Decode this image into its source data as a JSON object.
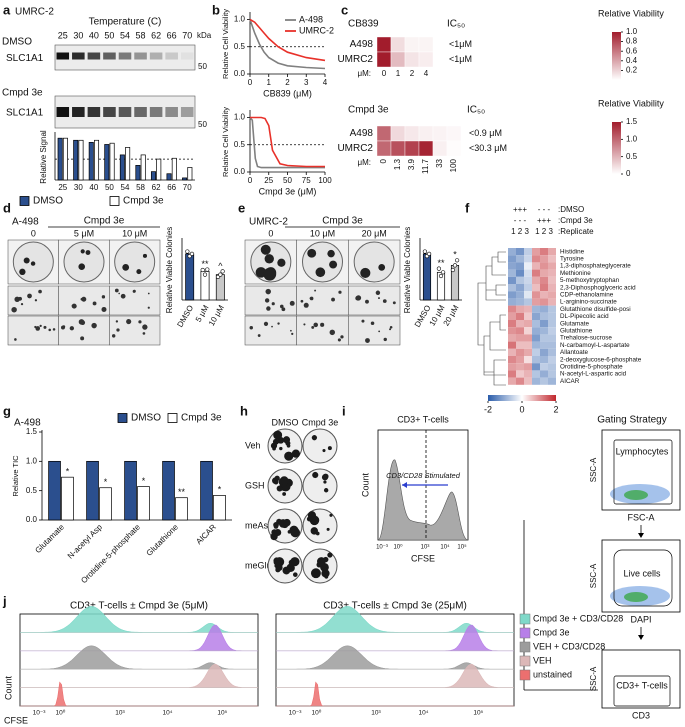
{
  "figure": {
    "a": {
      "label": "a",
      "cell_line": "UMRC-2",
      "axis_title": "Temperature (C)",
      "temperatures": [
        "25",
        "30",
        "40",
        "50",
        "54",
        "58",
        "62",
        "66",
        "70"
      ],
      "unit": "kDa",
      "rows": [
        {
          "treatment": "DMSO",
          "protein": "SLC1A1",
          "marker": "50"
        },
        {
          "treatment": "Cmpd 3e",
          "protein": "SLC1A1",
          "marker": "50"
        }
      ]
    },
    "b": {
      "label": "b"
    },
    "c": {
      "label": "c"
    },
    "d": {
      "label": "d",
      "cell_line": "A-498",
      "treatment": "Cmpd 3e",
      "doses": [
        "0",
        "5 μM",
        "10 μM"
      ]
    },
    "e": {
      "label": "e",
      "cell_line": "UMRC-2",
      "treatment": "Cmpd 3e",
      "doses": [
        "0",
        "10 μM",
        "20 μM"
      ]
    },
    "f": {
      "label": "f",
      "header": [
        [
          "+++",
          "- - -",
          ":DMSO"
        ],
        [
          "- - -",
          "+++",
          ":Cmpd 3e"
        ],
        [
          "1 2 3",
          "1 2 3",
          ":Replicate"
        ]
      ]
    },
    "g": {
      "label": "g"
    },
    "h": {
      "label": "h",
      "columns": [
        "DMSO",
        "Cmpd 3e"
      ],
      "rows": [
        "Veh",
        "GSH",
        "meAsp",
        "meGlu"
      ]
    },
    "i": {
      "label": "i",
      "histogram": {
        "title": "CD3+ T-cells",
        "ylabel": "Count",
        "xlabel": "CFSE",
        "annotation": "CD3/CD28 Stimulated",
        "xticks": [
          "10⁻³",
          "10⁰",
          "10³",
          "10⁴",
          "10⁵"
        ]
      },
      "gating": {
        "title": "Gating Strategy",
        "plots": [
          {
            "y": "SSC-A",
            "x": "FSC-A",
            "gate": "Lymphocytes"
          },
          {
            "y": "SSC-A",
            "x": "DAPI",
            "gate": "Live cells"
          },
          {
            "y": "SSC-A",
            "x": "CD3",
            "gate": "CD3+ T-cells"
          }
        ]
      }
    },
    "j": {
      "label": "j",
      "panels": [
        "CD3+ T-cells ± Cmpd 3e (5μM)",
        "CD3+ T-cells ± Cmpd 3e (25μM)"
      ],
      "ylabel": "Count",
      "xlabel": "CFSE",
      "xticks": [
        "10⁻³",
        "10⁰",
        "10³",
        "10⁴",
        "10⁵"
      ],
      "legend": [
        {
          "name": "Cmpd 3e + CD3/CD28",
          "color": "#7fd9c9"
        },
        {
          "name": "Cmpd 3e",
          "color": "#b77fe8"
        },
        {
          "name": "VEH + CD3/CD28",
          "color": "#9c9c9c"
        },
        {
          "name": "VEH",
          "color": "#dcb8b8"
        },
        {
          "name": "unstained",
          "color": "#ec6f6f"
        }
      ]
    }
  },
  "chart_data": [
    {
      "type": "bar",
      "ylabel": "Relative Signal",
      "categories": [
        "25",
        "30",
        "40",
        "50",
        "54",
        "58",
        "62",
        "66",
        "70"
      ],
      "series": [
        {
          "name": "DMSO",
          "color": "#2b4f8e",
          "values": [
            1.0,
            0.95,
            0.9,
            0.85,
            0.6,
            0.35,
            0.2,
            0.15,
            0.05
          ]
        },
        {
          "name": "Cmpd 3e",
          "color": "#ffffff",
          "values": [
            1.0,
            0.95,
            0.95,
            0.88,
            0.78,
            0.6,
            0.5,
            0.52,
            0.3
          ]
        }
      ],
      "ylim": [
        0,
        1.1
      ],
      "hline": 0.5
    },
    {
      "type": "line",
      "xlabel": "CB839 (μM)",
      "ylabel": "Relative Cell Viability",
      "x": [
        0,
        0.25,
        0.5,
        0.75,
        1,
        1.5,
        2,
        3,
        4
      ],
      "series": [
        {
          "name": "A-498",
          "color": "#808080",
          "values": [
            1.0,
            0.75,
            0.55,
            0.4,
            0.3,
            0.2,
            0.15,
            0.12,
            0.1
          ]
        },
        {
          "name": "UMRC-2",
          "color": "#e8312a",
          "values": [
            1.0,
            0.95,
            0.85,
            0.75,
            0.65,
            0.5,
            0.4,
            0.3,
            0.25
          ]
        }
      ],
      "xlim": [
        0,
        4
      ],
      "xticks": [
        0,
        1,
        2,
        3,
        4
      ],
      "ylim": [
        0,
        1.1
      ],
      "yticks": [
        {
          "value": 0,
          "label": "0.0"
        },
        {
          "value": 0.5,
          "label": "0.5"
        },
        {
          "value": 1,
          "label": "1.0"
        }
      ],
      "hline": 0.5,
      "legend": "upper right"
    },
    {
      "type": "line",
      "xlabel": "Cmpd 3e (μM)",
      "ylabel": "Relative Cell Viability",
      "x": [
        0,
        3,
        5,
        7,
        10,
        15,
        20,
        25,
        30,
        40,
        50,
        75,
        100
      ],
      "series": [
        {
          "color": "#808080",
          "values": [
            1.0,
            0.95,
            0.6,
            0.25,
            0.1,
            0.08,
            0.08,
            0.08,
            0.08,
            0.08,
            0.08,
            0.08,
            0.08
          ]
        },
        {
          "color": "#e8312a",
          "values": [
            1.0,
            1.0,
            1.0,
            1.0,
            1.0,
            1.0,
            0.98,
            0.85,
            0.4,
            0.15,
            0.12,
            0.1,
            0.1
          ]
        }
      ],
      "xlim": [
        0,
        100
      ],
      "xticks": [
        0,
        25,
        50,
        75,
        100
      ],
      "ylim": [
        0,
        1.1
      ],
      "yticks": [
        {
          "value": 0,
          "label": "0.0"
        },
        {
          "value": 0.5,
          "label": "0.5"
        },
        {
          "value": 1,
          "label": "1.0"
        }
      ],
      "hline": 0.5
    },
    {
      "type": "heatmap",
      "title": "CB839",
      "rows": [
        "A498",
        "UMRC2"
      ],
      "column_prefix": "μM:",
      "columns": [
        "0",
        "1",
        "2",
        "4"
      ],
      "values": [
        [
          1.0,
          0.15,
          0.05,
          0.05
        ],
        [
          1.0,
          0.3,
          0.12,
          0.08
        ]
      ],
      "ic50_title": "IC₅₀",
      "ic50": [
        "<1μM",
        "<1μM"
      ],
      "colorbar_title": "Relative Viability",
      "clim": [
        0,
        1.0
      ],
      "colors": [
        "#ffffff",
        "#a21c2c"
      ],
      "cticks": [
        {
          "value": 1.0,
          "label": "1.0"
        },
        {
          "value": 0.8,
          "label": "0.8"
        },
        {
          "value": 0.6,
          "label": "0.6"
        },
        {
          "value": 0.4,
          "label": "0.4"
        },
        {
          "value": 0.2,
          "label": "0.2"
        }
      ]
    },
    {
      "type": "heatmap",
      "title": "Cmpd 3e",
      "rows": [
        "A498",
        "UMRC2"
      ],
      "column_prefix": "μM:",
      "columns": [
        "0",
        "1.3",
        "3.9",
        "11.7",
        "33",
        "100"
      ],
      "values": [
        [
          1.0,
          0.25,
          0.15,
          0.1,
          0.08,
          0.05
        ],
        [
          1.0,
          1.15,
          1.25,
          1.45,
          0.1,
          0.02
        ]
      ],
      "ic50_title": "IC₅₀",
      "ic50": [
        "<0.9 μM",
        "<30.3 μM"
      ],
      "colorbar_title": "Relative Viability",
      "clim": [
        0,
        1.5
      ],
      "colors": [
        "#ffffff",
        "#a21c2c"
      ],
      "cticks": [
        {
          "value": 1.5,
          "label": "1.5"
        },
        {
          "value": 1,
          "label": "1.0"
        },
        {
          "value": 0.5,
          "label": "0.5"
        },
        0
      ]
    },
    {
      "type": "bar",
      "ylabel": "Relative Viable Colonies",
      "categories": [
        "DMSO",
        "5 μM",
        "10 μM"
      ],
      "values": [
        1.0,
        0.62,
        0.55
      ],
      "colors": [
        "#2b4f8e",
        "#ffffff",
        "#c8c8c8"
      ],
      "points": [
        [
          1.05,
          0.95,
          1.0
        ],
        [
          0.65,
          0.55,
          0.66
        ],
        [
          0.5,
          0.55,
          0.62
        ]
      ],
      "significance": [
        {
          "index": 1,
          "label": "**"
        },
        {
          "index": 2,
          "label": "^"
        }
      ],
      "ylim": [
        0,
        1.3
      ]
    },
    {
      "type": "bar",
      "ylabel": "Relative Viable Colonies",
      "categories": [
        "DMSO",
        "10 μM",
        "20 μM"
      ],
      "values": [
        1.0,
        0.6,
        0.75
      ],
      "colors": [
        "#2b4f8e",
        "#ffffff",
        "#c8c8c8"
      ],
      "points": [
        [
          1.05,
          0.95,
          1.0
        ],
        [
          0.68,
          0.52,
          0.6
        ],
        [
          0.65,
          0.75,
          0.86
        ]
      ],
      "significance": [
        {
          "index": 1,
          "label": "**"
        },
        {
          "index": 2,
          "label": "*"
        }
      ],
      "ylim": [
        0,
        1.3
      ]
    },
    {
      "type": "heatmap",
      "rows": [
        "Histidine",
        "Tyrosine",
        "1,3-diphosphateglycerate",
        "Methionine",
        "5-methoxytryptophan",
        "2,3-Diphosphoglyceric acid",
        "CDP-ethanolamine",
        "L-arginino-succinate",
        "Glutathione disulfide-posi",
        "DL-Pipecolic acid",
        "Glutamate",
        "Glutathione",
        "Trehalose-sucrose",
        "N-carbamoyl-L-aspartate",
        "Allantoate",
        "2-deoxyglucose-6-phosphate",
        "Orotidine-5-phosphate",
        "N-acetyl-L-aspartic acid",
        "AICAR"
      ],
      "values": [
        [
          -1.0,
          -1.3,
          -0.6,
          0.9,
          1.2,
          0.8
        ],
        [
          -1.2,
          -0.9,
          -0.5,
          1.1,
          0.9,
          0.6
        ],
        [
          -1.1,
          -1.2,
          -0.2,
          0.7,
          1.0,
          0.8
        ],
        [
          -0.9,
          -1.4,
          -0.4,
          1.2,
          0.8,
          0.7
        ],
        [
          -1.3,
          -0.7,
          -0.5,
          0.8,
          1.1,
          0.6
        ],
        [
          -0.8,
          -1.1,
          -0.6,
          0.6,
          1.2,
          0.7
        ],
        [
          -1.2,
          -1.0,
          -0.3,
          1.0,
          0.7,
          0.8
        ],
        [
          -1.0,
          -0.9,
          -0.7,
          0.9,
          1.0,
          0.7
        ],
        [
          1.1,
          0.8,
          0.7,
          -0.9,
          -1.0,
          -0.7
        ],
        [
          0.9,
          1.2,
          0.5,
          -1.1,
          -0.8,
          -0.7
        ],
        [
          1.2,
          0.7,
          0.8,
          -0.8,
          -1.2,
          -0.7
        ],
        [
          1.0,
          1.1,
          0.4,
          -1.0,
          -0.9,
          -0.6
        ],
        [
          0.8,
          0.9,
          0.9,
          -1.2,
          -0.7,
          -0.7
        ],
        [
          1.3,
          0.6,
          0.6,
          -0.9,
          -0.8,
          -0.8
        ],
        [
          0.7,
          1.0,
          0.8,
          -0.6,
          -1.1,
          -0.8
        ],
        [
          1.1,
          0.9,
          0.3,
          -0.8,
          -0.9,
          -0.6
        ],
        [
          0.9,
          0.8,
          0.9,
          -1.3,
          -0.6,
          -0.7
        ],
        [
          1.2,
          0.5,
          0.7,
          -0.7,
          -1.0,
          -0.7
        ],
        [
          0.8,
          1.1,
          0.6,
          -0.9,
          -0.7,
          -0.9
        ]
      ],
      "clim": [
        -2,
        2
      ],
      "colors": [
        "#2a5caa",
        "#ffffff",
        "#c1272d"
      ],
      "cticks": [
        -2,
        0,
        2
      ]
    },
    {
      "type": "bar",
      "title": "A-498",
      "ylabel": "Relative TIC",
      "categories": [
        "Glutamate",
        "N-acetyl Asp",
        "Orotidine-5-phosphate",
        "Glutathione",
        "AICAR"
      ],
      "series": [
        {
          "name": "DMSO",
          "color": "#2b4f8e",
          "values": [
            1.0,
            1.0,
            1.0,
            1.0,
            1.0
          ]
        },
        {
          "name": "Cmpd 3e",
          "color": "#ffffff",
          "values": [
            0.73,
            0.55,
            0.57,
            0.38,
            0.42
          ]
        }
      ],
      "significance": [
        {
          "series": 1,
          "index": 0,
          "label": "*"
        },
        {
          "series": 1,
          "index": 1,
          "label": "*"
        },
        {
          "series": 1,
          "index": 2,
          "label": "*"
        },
        {
          "series": 1,
          "index": 3,
          "label": "**"
        },
        {
          "series": 1,
          "index": 4,
          "label": "*"
        }
      ],
      "ylim": [
        0,
        1.5
      ],
      "yticks": [
        {
          "value": 0,
          "label": "0.0"
        },
        {
          "value": 0.5,
          "label": "0.5"
        },
        {
          "value": 1,
          "label": "1.0"
        },
        {
          "value": 1.5,
          "label": "1.5"
        }
      ],
      "legend": "top"
    }
  ]
}
